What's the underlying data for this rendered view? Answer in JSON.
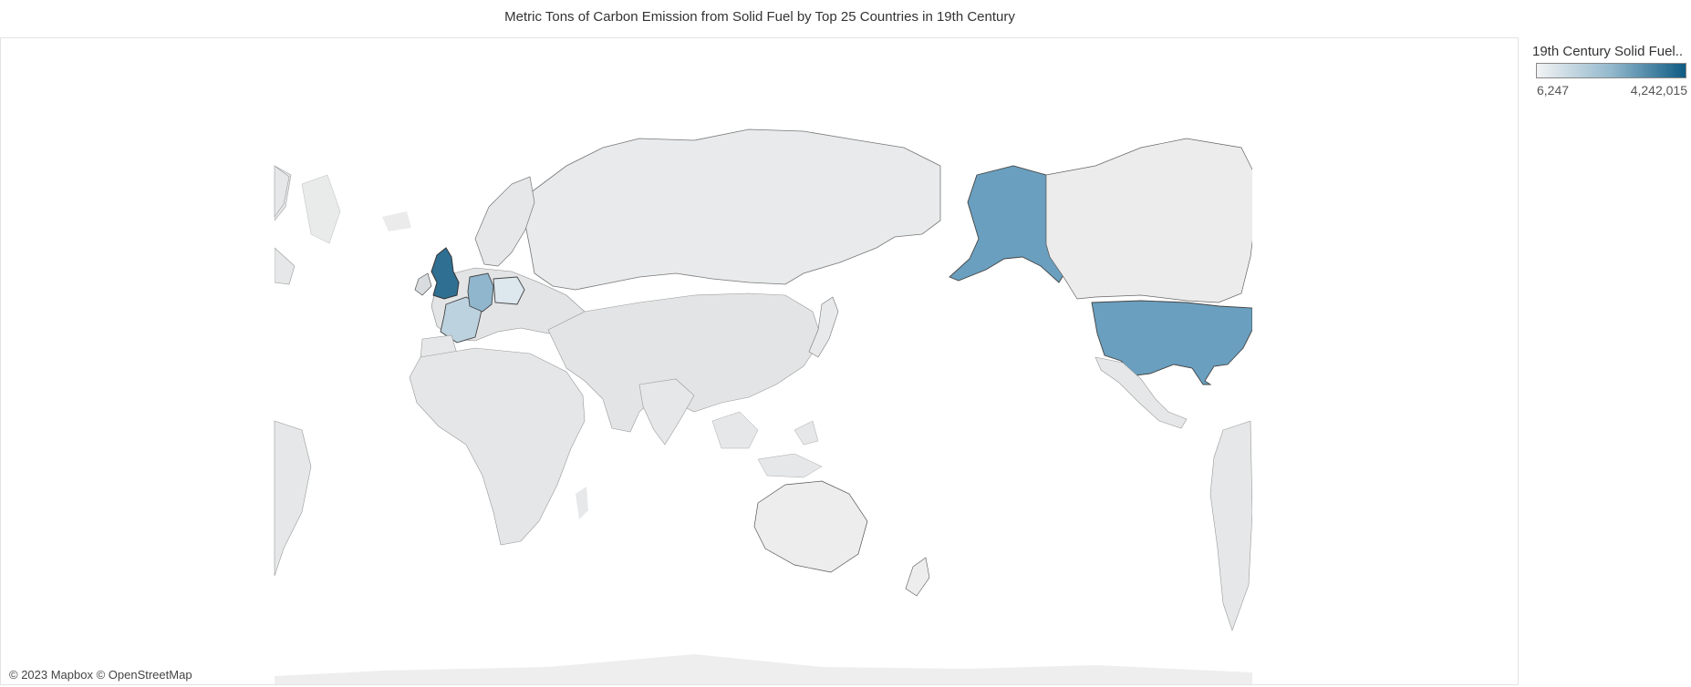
{
  "title": "Metric Tons of Carbon Emission from Solid Fuel by Top 25 Countries in 19th Century",
  "attribution": "© 2023 Mapbox © OpenStreetMap",
  "legend": {
    "title": "19th Century Solid Fuel..",
    "min_label": "6,247",
    "max_label": "4,242,015",
    "min_value": 6247,
    "max_value": 4242015,
    "color_low": "#f2f3f4",
    "color_high": "#0e5a83"
  },
  "colors": {
    "background_land": "#e4e5e6",
    "no_data_land": "#ebebeb",
    "ocean": "#ffffff",
    "country_border": "#555555"
  },
  "highlighted_countries": [
    {
      "name": "United Kingdom",
      "color": "#2f6f91"
    },
    {
      "name": "United States",
      "color": "#6a9fbf"
    },
    {
      "name": "Germany",
      "color": "#8fb6cd"
    },
    {
      "name": "France",
      "color": "#bcd2df"
    },
    {
      "name": "Poland",
      "color": "#dde7ee"
    }
  ]
}
